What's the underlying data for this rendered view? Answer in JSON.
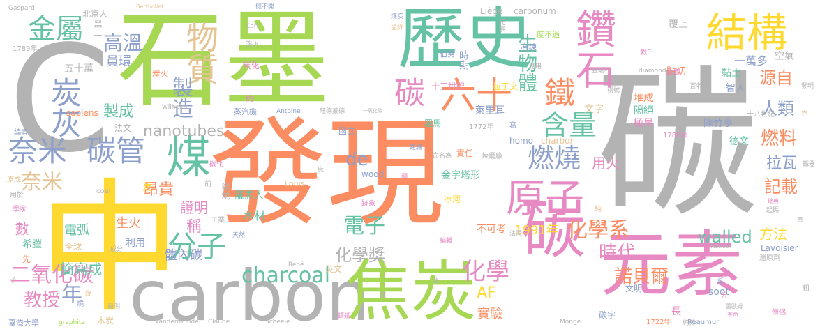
{
  "palette": {
    "gray": "#b3b3b3",
    "orange": "#fc8d62",
    "teal": "#66c2a5",
    "pink": "#e78ac3",
    "green": "#a6d854",
    "blue": "#8da0cb",
    "yellow": "#ffd92f",
    "tan": "#e5c494"
  },
  "words": [
    "碳",
    "發現",
    "石墨",
    "中",
    "C",
    "元素",
    "碳",
    "歷史",
    "carbon",
    "焦炭",
    "鑽石",
    "結構",
    "煤",
    "碳",
    "六十",
    "原子",
    "金屬",
    "物質",
    "炭灰",
    "奈米",
    "碳管",
    "分子",
    "燃燒",
    "含量",
    "charcoal",
    "製造",
    "高溫",
    "鐵",
    "生物體",
    "化學系",
    "電子",
    "化學獎",
    "時代",
    "諾貝爾",
    "年",
    "二氧化碳",
    "nanotubes",
    "奈米",
    "de",
    "教授",
    "燃料",
    "人類",
    "源自",
    "記載",
    "拉瓦",
    "walled",
    "方法",
    "化學",
    "1991年",
    "體內碳",
    "簡寫成",
    "昂貴",
    "證明",
    "稱",
    "數",
    "電弧",
    "生火",
    "利用",
    "全球",
    "實驗",
    "AF",
    "冰河",
    "金字塔形",
    "責任",
    "木材",
    "羅馬人",
    "羅馬",
    "國立",
    "用火",
    "智人",
    "萊里耳",
    "一萬多",
    "空氣",
    "黏土",
    "文字",
    "堆成",
    "隔絕",
    "極早",
    "十八世紀",
    "十三世紀",
    "拉丁文",
    "時期",
    "carbonum",
    "Liège",
    "Berthollet",
    "北京人",
    "黑土",
    "員環",
    "五十萬",
    "製成",
    "sapiens",
    "法文",
    "炭火",
    "Wilhelm",
    "蒸汽機",
    "約",
    "Antoine",
    "旺德蒙德",
    "一氧化碳",
    "homo",
    "charbon",
    "wood",
    "1772年",
    "1786年",
    "陳竹亭",
    "德文",
    "soot",
    "長",
    "碳字",
    "Monge",
    "1722年",
    "Réaumur",
    "僧侶",
    "Vandermonde",
    "Claude",
    "Scheele",
    "木炭",
    "graphite",
    "臺灣大學",
    "René",
    "英文",
    "鍛燒",
    "Louis",
    "跡象",
    "不可考",
    "貼切",
    "覆上",
    "度不過",
    "冶鍊",
    "元素",
    "故鄉",
    "金剛石",
    "diamond",
    "數千",
    "分",
    "雷歐姆",
    "革命",
    "瑞典",
    "起碼",
    "Reinier",
    "還原劑",
    "Lavoisier",
    "文明",
    "編輯",
    "天然",
    "工業",
    "瓦特",
    "前",
    "更",
    "煤炭",
    "碳化",
    "命名為",
    "建議",
    "寫",
    "煉鋼廠",
    "伯努",
    "純",
    "coal",
    "Gaspard",
    "1789年",
    "編者",
    "用於",
    "原成",
    "學家",
    "希臘",
    "先",
    "子",
    "燒",
    "最明",
    "假不開",
    "Carl",
    "孟許",
    "滲入",
    "氧化",
    "稱號",
    "純粹",
    "應用",
    "發明",
    "粗",
    "法國",
    "鑄鐵",
    "話",
    "懂",
    "意",
    "說",
    "成分",
    "法",
    "度",
    "克",
    "鐵器",
    "顯",
    "E",
    "p",
    "聖",
    "面",
    "鼎",
    "節將",
    "能",
    "一般",
    "里",
    "國",
    "地",
    "一"
  ]
}
